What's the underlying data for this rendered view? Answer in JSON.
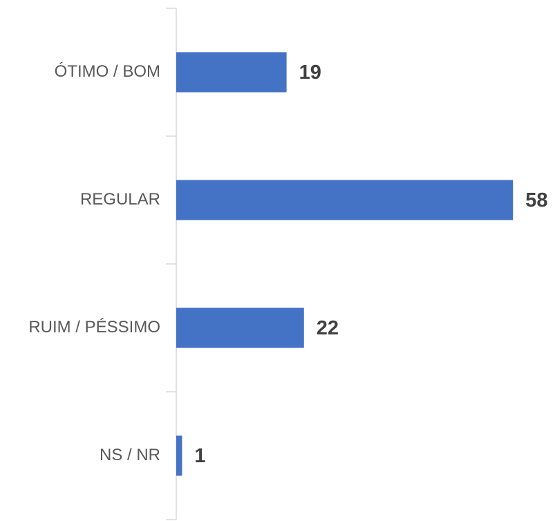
{
  "chart_data": {
    "type": "hbar",
    "categories": [
      "ÓTIMO / BOM",
      "REGULAR",
      "RUIM / PÉSSIMO",
      "NS / NR"
    ],
    "values": [
      19,
      58,
      22,
      1
    ],
    "color": "#4472c4"
  }
}
